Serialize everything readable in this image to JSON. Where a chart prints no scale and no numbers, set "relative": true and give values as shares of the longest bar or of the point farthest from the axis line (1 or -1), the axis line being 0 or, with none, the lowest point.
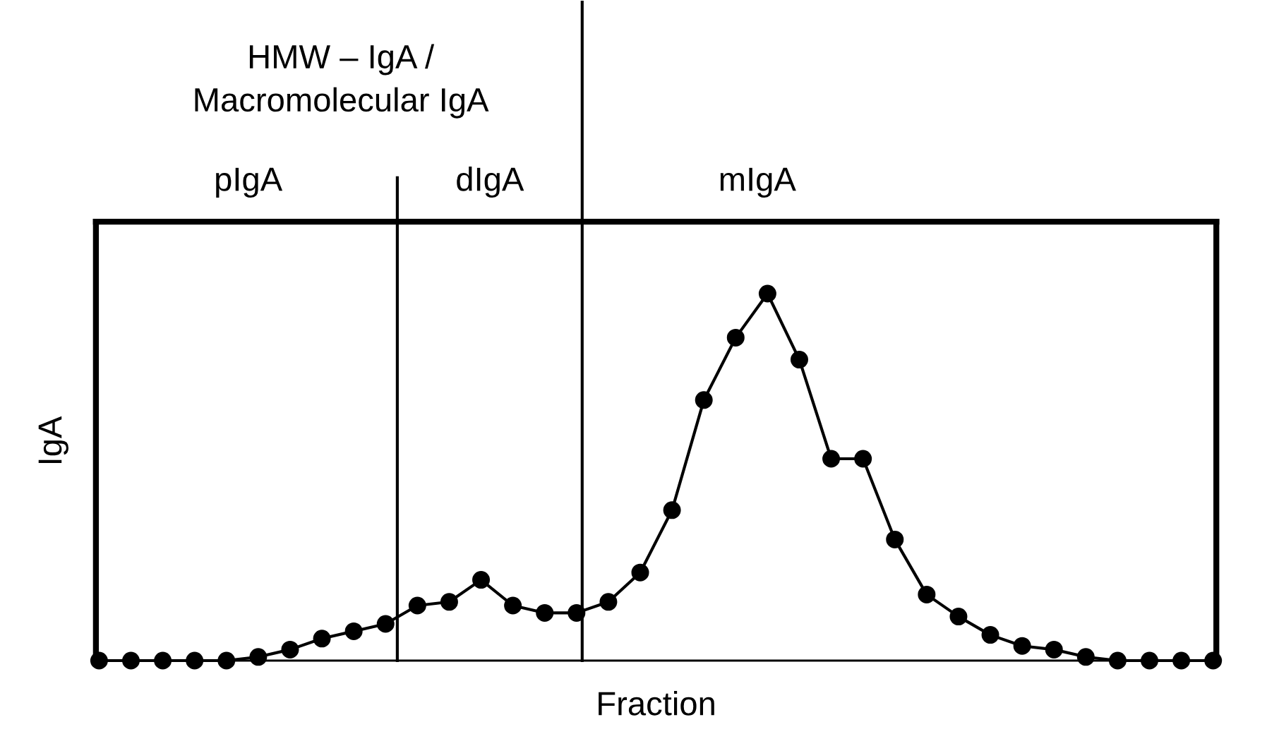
{
  "chart_data": {
    "type": "line",
    "relative": true,
    "xlabel": "Fraction",
    "ylabel": "IgA",
    "categories": [
      null,
      null,
      null,
      null,
      null,
      null,
      null,
      null,
      null,
      null,
      null,
      null,
      null,
      null,
      null,
      null,
      null,
      null,
      null,
      null,
      null,
      null,
      null,
      null,
      null,
      null,
      null,
      null,
      null,
      null,
      null,
      null,
      null,
      null,
      null,
      null
    ],
    "marker": "circle",
    "line_style": "solid",
    "series": [
      {
        "color": "#000000",
        "values": [
          0,
          0,
          0,
          0,
          0,
          0.01,
          0.03,
          0.06,
          0.08,
          0.1,
          0.15,
          0.16,
          0.22,
          0.15,
          0.13,
          0.13,
          0.16,
          0.24,
          0.41,
          0.71,
          0.88,
          1.0,
          0.82,
          0.55,
          0.55,
          0.33,
          0.18,
          0.12,
          0.07,
          0.04,
          0.03,
          0.01,
          0,
          0,
          0,
          0
        ]
      }
    ],
    "annotations": [
      "HMW – IgA /\nMacromolecular IgA",
      "pIgA",
      "dIgA",
      "mIgA"
    ]
  }
}
